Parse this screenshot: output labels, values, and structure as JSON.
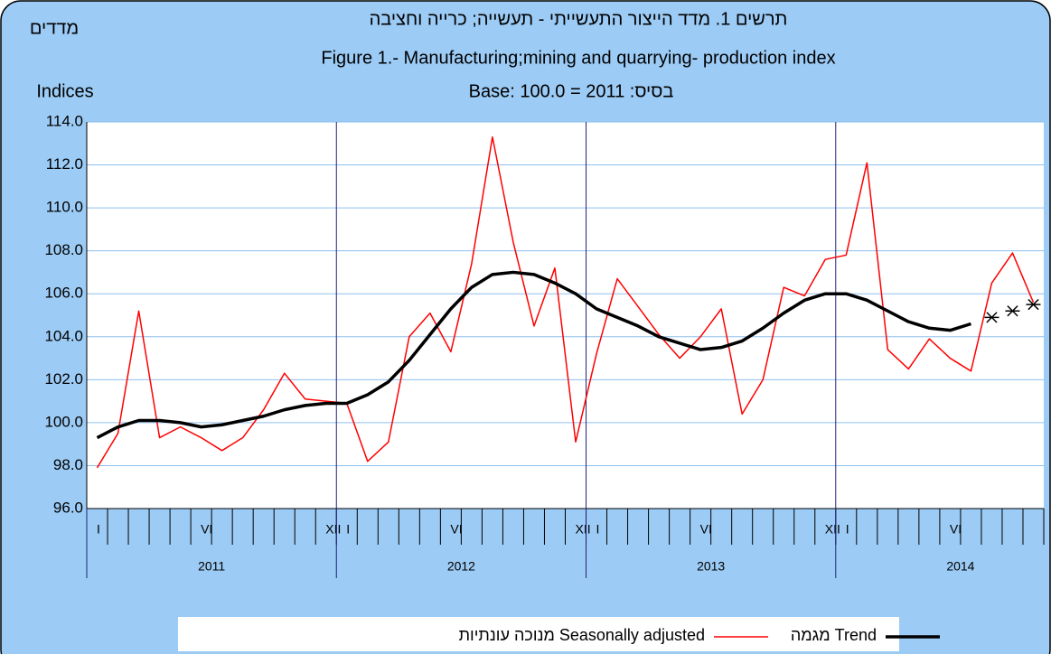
{
  "chart_data": {
    "type": "line",
    "title_he": "תרשים 1. מדד הייצור התעשייתי - תעשייה; כרייה וחציבה",
    "title": "Figure 1.- Manufacturing;mining and quarrying- production index",
    "subtitle": "Base: 100.0 = 2011 :בסיס",
    "y_label_he": "מדדים",
    "y_label": "Indices",
    "categories": [
      "I",
      null,
      null,
      null,
      null,
      "VI",
      null,
      null,
      null,
      null,
      null,
      "XII",
      "I",
      null,
      null,
      null,
      null,
      "VI",
      null,
      null,
      null,
      null,
      null,
      "XII",
      "I",
      null,
      null,
      null,
      null,
      "VI",
      null,
      null,
      null,
      null,
      null,
      "XII",
      "I",
      null,
      null,
      null,
      null,
      "VI",
      null,
      null,
      null,
      null
    ],
    "years": [
      "2011",
      "2012",
      "2013",
      "2014"
    ],
    "series": [
      {
        "name": "מנוכה עונתיות Seasonally adjusted",
        "color": "#ff0000",
        "width": 1.5,
        "values": [
          97.9,
          99.5,
          105.2,
          99.3,
          99.8,
          99.3,
          98.7,
          99.3,
          100.6,
          102.3,
          101.1,
          101.0,
          100.9,
          98.2,
          99.1,
          104.0,
          105.1,
          103.3,
          107.4,
          113.3,
          108.4,
          104.5,
          107.2,
          99.1,
          103.2,
          106.7,
          105.4,
          104.1,
          103.0,
          104.0,
          105.3,
          100.4,
          102.0,
          106.3,
          105.9,
          107.6,
          107.8,
          112.1,
          103.4,
          102.5,
          103.9,
          103.0,
          102.4,
          106.5,
          107.9,
          105.6
        ]
      },
      {
        "name": "מגמה Trend",
        "color": "#000000",
        "width": 3.5,
        "values": [
          99.3,
          99.8,
          100.1,
          100.1,
          100.0,
          99.8,
          99.9,
          100.1,
          100.3,
          100.6,
          100.8,
          100.9,
          100.9,
          101.3,
          101.9,
          102.9,
          104.1,
          105.3,
          106.3,
          106.9,
          107.0,
          106.9,
          106.5,
          106.0,
          105.3,
          104.9,
          104.5,
          104.0,
          103.7,
          103.4,
          103.5,
          103.8,
          104.4,
          105.1,
          105.7,
          106.0,
          106.0,
          105.7,
          105.2,
          104.7,
          104.4,
          104.3,
          104.6,
          null,
          null,
          null
        ]
      },
      {
        "color": "#000000",
        "marker": "asterisk",
        "values": [
          null,
          null,
          null,
          null,
          null,
          null,
          null,
          null,
          null,
          null,
          null,
          null,
          null,
          null,
          null,
          null,
          null,
          null,
          null,
          null,
          null,
          null,
          null,
          null,
          null,
          null,
          null,
          null,
          null,
          null,
          null,
          null,
          null,
          null,
          null,
          null,
          null,
          null,
          null,
          null,
          null,
          null,
          null,
          104.9,
          105.2,
          105.5
        ]
      }
    ],
    "ylim": [
      96,
      114
    ],
    "yticks": [
      {
        "value": 96,
        "label": "96.0"
      },
      {
        "value": 98,
        "label": "98.0"
      },
      {
        "value": 100,
        "label": "100.0"
      },
      {
        "value": 102,
        "label": "102.0"
      },
      {
        "value": 104,
        "label": "104.0"
      },
      {
        "value": 106,
        "label": "106.0"
      },
      {
        "value": 108,
        "label": "108.0"
      },
      {
        "value": 110,
        "label": "110.0"
      },
      {
        "value": 112,
        "label": "112.0"
      },
      {
        "value": 114,
        "label": "114.0"
      }
    ],
    "grid": true
  }
}
